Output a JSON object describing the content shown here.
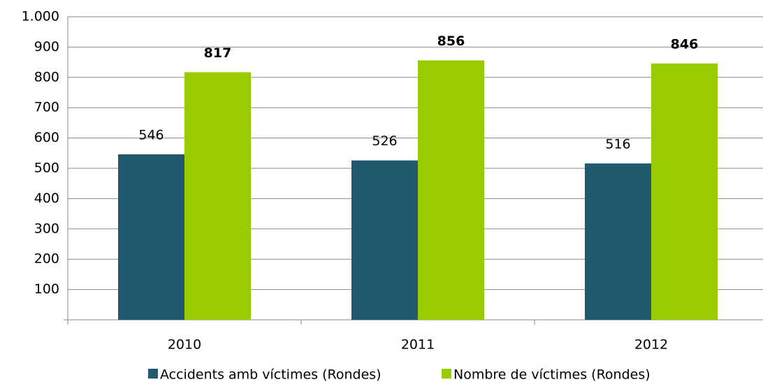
{
  "chart_data": {
    "type": "bar",
    "categories": [
      "2010",
      "2011",
      "2012"
    ],
    "series": [
      {
        "name": "Accidents amb víctimes (Rondes)",
        "color": "#215a6f",
        "values": [
          546,
          526,
          516
        ]
      },
      {
        "name": "Nombre de víctimes (Rondes)",
        "color": "#99cc00",
        "values": [
          817,
          856,
          846
        ]
      }
    ],
    "ylim": [
      0,
      1000
    ],
    "yticks": [
      100,
      200,
      300,
      400,
      500,
      600,
      700,
      800,
      900,
      {
        "value": 1000,
        "label": "1.000"
      }
    ],
    "grid": true,
    "legend": "bottom"
  }
}
